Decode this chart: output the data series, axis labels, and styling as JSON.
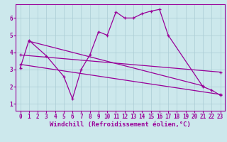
{
  "xlabel": "Windchill (Refroidissement éolien,°C)",
  "ylabel": "",
  "bg_color": "#cce8ec",
  "line_color": "#990099",
  "xlim": [
    -0.5,
    23.5
  ],
  "ylim": [
    0.6,
    6.8
  ],
  "yticks": [
    1,
    2,
    3,
    4,
    5,
    6
  ],
  "xticks": [
    0,
    1,
    2,
    3,
    4,
    5,
    6,
    7,
    8,
    9,
    10,
    11,
    12,
    13,
    14,
    15,
    16,
    17,
    18,
    19,
    20,
    21,
    22,
    23
  ],
  "series1_x": [
    0,
    1,
    3,
    5,
    6,
    7,
    8,
    9,
    10,
    11,
    12,
    13,
    14,
    15,
    16,
    17,
    21,
    22,
    23
  ],
  "series1_y": [
    3.1,
    4.7,
    3.8,
    2.6,
    1.3,
    3.0,
    3.85,
    5.2,
    5.0,
    6.35,
    6.0,
    6.0,
    6.25,
    6.4,
    6.5,
    5.0,
    2.0,
    1.8,
    1.5
  ],
  "series2_x": [
    1,
    21
  ],
  "series2_y": [
    4.65,
    2.05
  ],
  "series3_x": [
    0,
    23
  ],
  "series3_y": [
    3.85,
    2.85
  ],
  "series4_x": [
    0,
    23
  ],
  "series4_y": [
    3.3,
    1.55
  ],
  "grid_color": "#aaccd4",
  "font_family": "monospace",
  "tick_fontsize": 5.5,
  "label_fontsize": 6.5
}
